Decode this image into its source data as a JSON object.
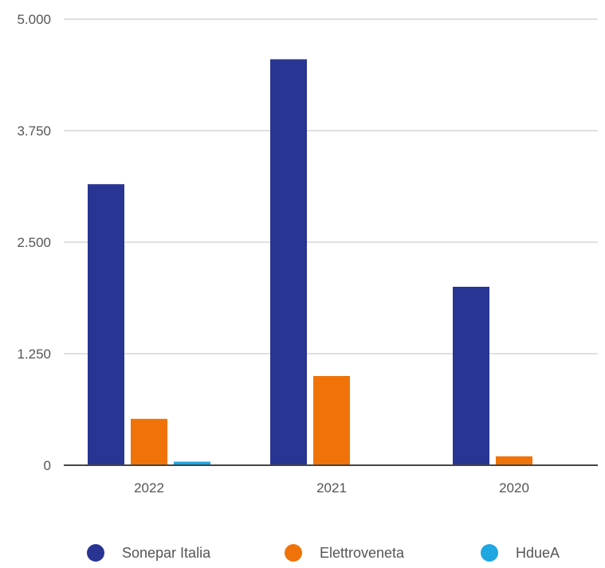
{
  "chart_data": {
    "type": "bar",
    "categories": [
      "2022",
      "2021",
      "2020"
    ],
    "series": [
      {
        "name": "Sonepar Italia",
        "color": "#283593",
        "values": [
          3150,
          4550,
          2000
        ]
      },
      {
        "name": "Elettroveneta",
        "color": "#ef7308",
        "values": [
          520,
          1000,
          100
        ]
      },
      {
        "name": "HdueA",
        "color": "#1ea7e0",
        "values": [
          40,
          0,
          0
        ]
      }
    ],
    "yticks": [
      "0",
      "1.250",
      "2.500",
      "3.750",
      "5.000"
    ],
    "ytick_values": [
      0,
      1250,
      2500,
      3750,
      5000
    ],
    "ylim": [
      0,
      5000
    ],
    "grid": true,
    "legend_position": "bottom"
  }
}
